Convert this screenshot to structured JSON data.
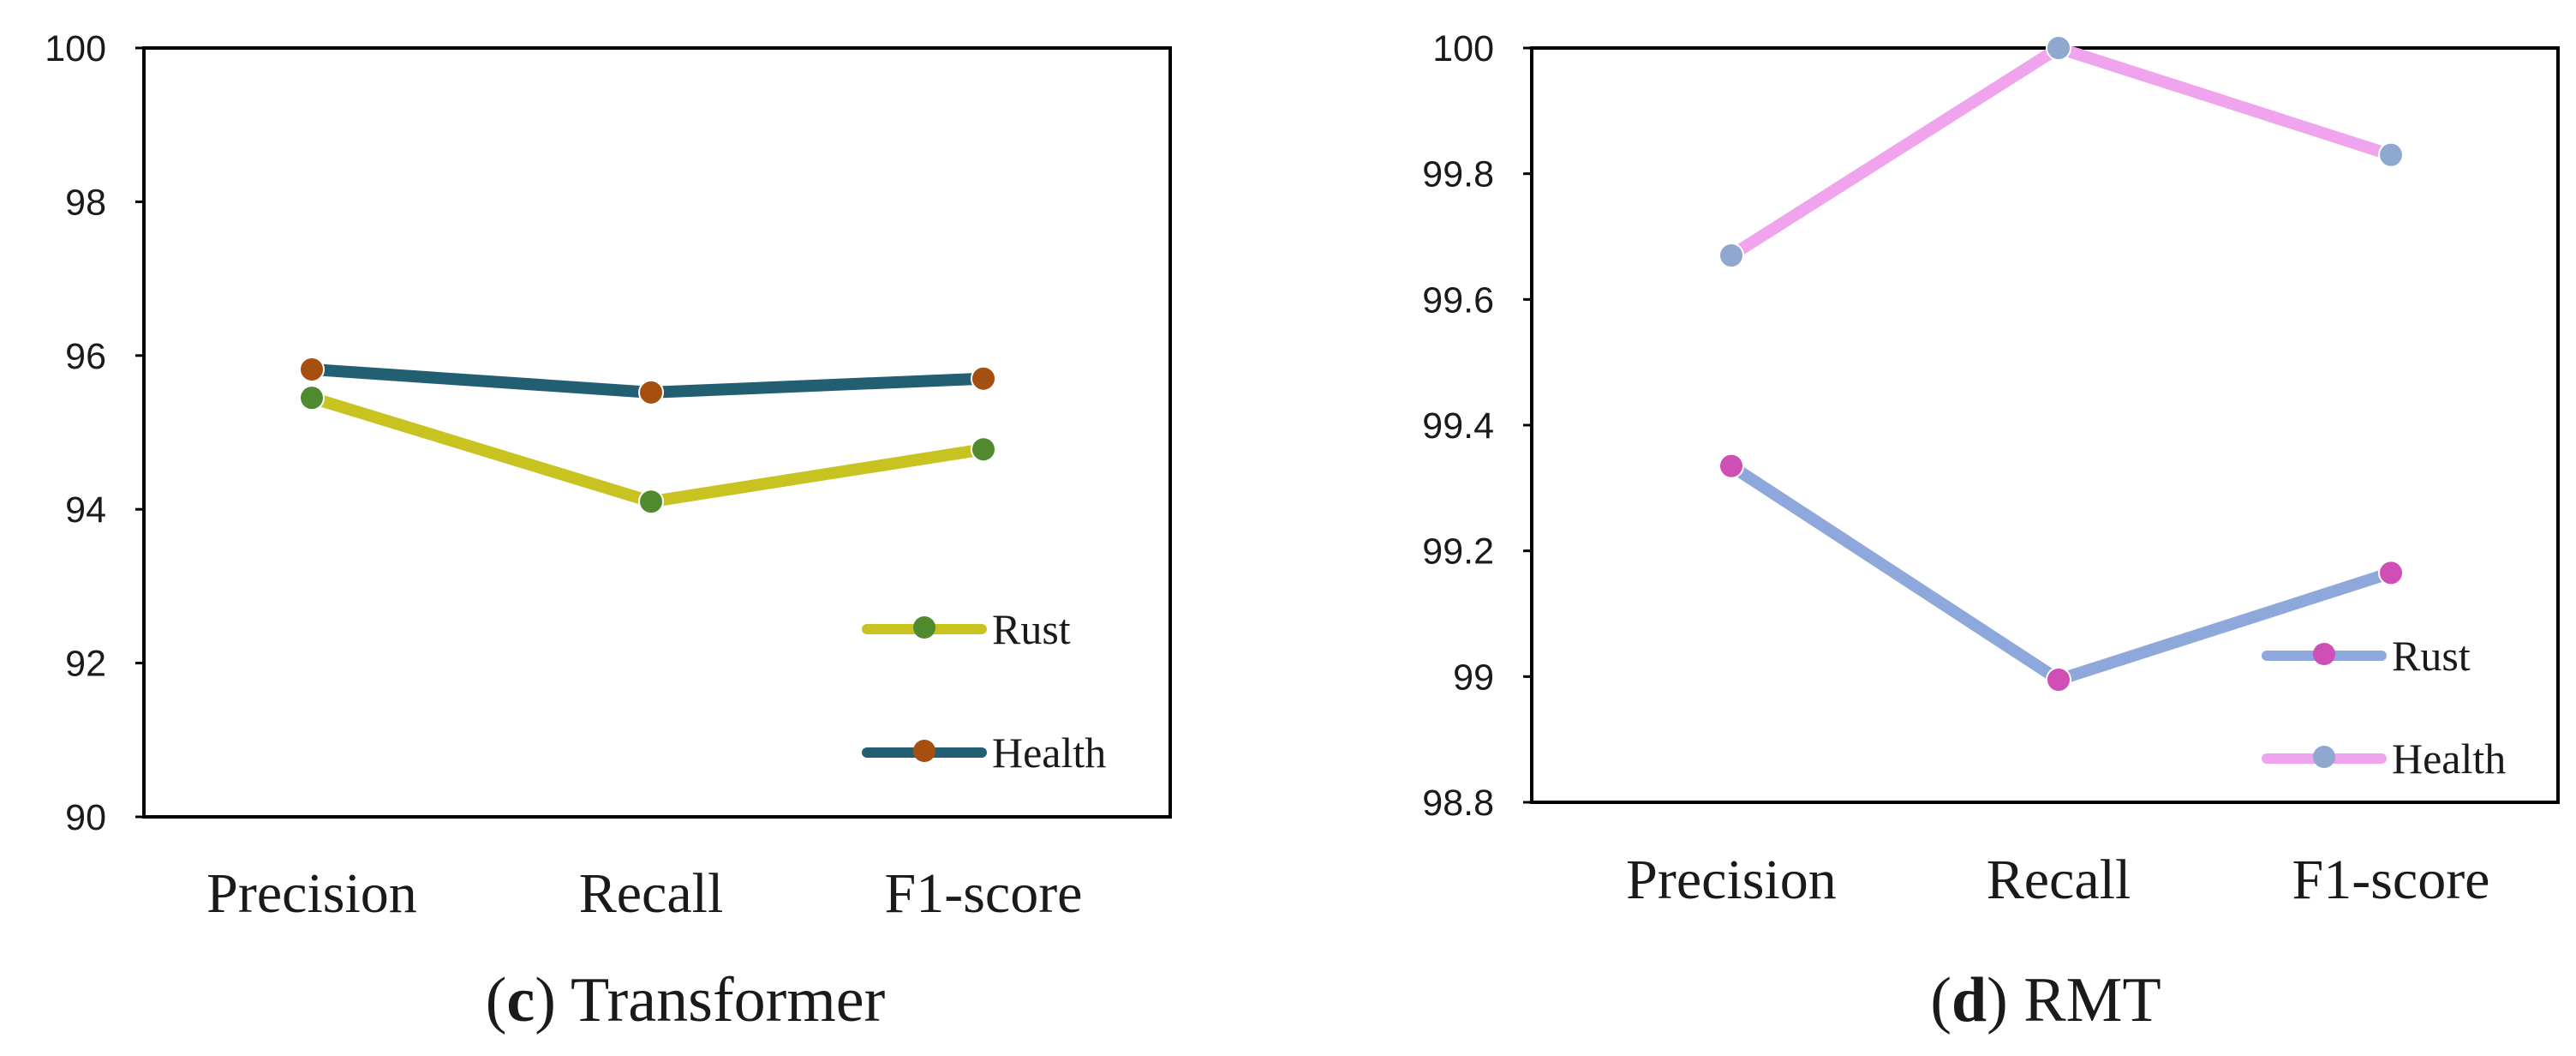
{
  "chart_data": [
    {
      "type": "line",
      "caption_letter": "c",
      "caption_open": "(",
      "caption_close": ")",
      "caption_title": " Transformer",
      "title": "",
      "xlabel": "",
      "ylabel": "",
      "categories": [
        "Precision",
        "Recall",
        "F1-score"
      ],
      "ylim": [
        90,
        100
      ],
      "yticks": [
        "90",
        "92",
        "94",
        "96",
        "98",
        "100"
      ],
      "grid": false,
      "legend_position": "bottom-right",
      "series": [
        {
          "name": "Rust",
          "values": [
            95.45,
            94.1,
            94.78
          ],
          "line_color": "#c8c320",
          "marker_color": "#4f8a2e"
        },
        {
          "name": "Health",
          "values": [
            95.82,
            95.52,
            95.7
          ],
          "line_color": "#235f73",
          "marker_color": "#a54f10"
        }
      ]
    },
    {
      "type": "line",
      "caption_letter": "d",
      "caption_open": "(",
      "caption_close": ")",
      "caption_title": " RMT",
      "title": "",
      "xlabel": "",
      "ylabel": "",
      "categories": [
        "Precision",
        "Recall",
        "F1-score"
      ],
      "ylim": [
        98.8,
        100
      ],
      "yticks": [
        "98.8",
        "99",
        "99.2",
        "99.4",
        "99.6",
        "99.8",
        "100"
      ],
      "grid": false,
      "legend_position": "bottom-right",
      "series": [
        {
          "name": "Rust",
          "values": [
            99.335,
            98.995,
            99.165
          ],
          "line_color": "#8ea8dc",
          "marker_color": "#cf4fb6"
        },
        {
          "name": "Health",
          "values": [
            99.67,
            100.0,
            99.83
          ],
          "line_color": "#f0a4ee",
          "marker_color": "#8fa8d0"
        }
      ]
    }
  ]
}
